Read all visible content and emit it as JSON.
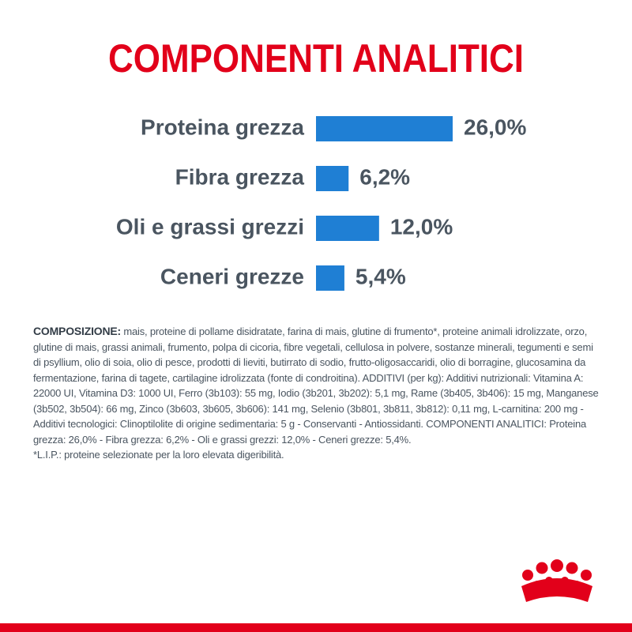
{
  "chart_data": {
    "type": "hbar",
    "title": "COMPONENTI ANALITICI",
    "categories": [
      "Proteina grezza",
      "Fibra grezza",
      "Oli e grassi grezzi",
      "Ceneri grezze"
    ],
    "values": [
      26.0,
      6.2,
      12.0,
      5.4
    ],
    "value_labels": [
      "26,0%",
      "6,2%",
      "12,0%",
      "5,4%"
    ],
    "color": "#1f7fd4"
  },
  "composition": {
    "label": "COMPOSIZIONE:",
    "text": "mais, proteine di pollame disidratate, farina di mais, glutine di frumento*, proteine animali idrolizzate, orzo, glutine di mais, grassi animali, frumento, polpa di cicoria, fibre vegetali, cellulosa in polvere, sostanze minerali, tegumenti e semi di psyllium, olio di soia, olio di pesce, prodotti di lieviti, butirrato di sodio, frutto-oligosaccaridi, olio di borragine, glucosamina da fermentazione, farina di tagete, cartilagine idrolizzata (fonte di condroitina). ADDITIVI (per kg): Additivi nutrizionali: Vitamina A: 22000 UI, Vitamina D3: 1000 UI, Ferro (3b103): 55 mg, Iodio (3b201, 3b202): 5,1 mg, Rame (3b405, 3b406): 15 mg, Manganese (3b502, 3b504): 66 mg, Zinco (3b603, 3b605, 3b606): 141 mg, Selenio (3b801, 3b811, 3b812): 0,11 mg, L-carnitina: 200 mg - Additivi tecnologici: Clinoptilolite di origine sedimentaria: 5 g - Conservanti - Antiossidanti. COMPONENTI ANALITICI: Proteina grezza: 26,0% - Fibra grezza: 6,2% - Oli e grassi grezzi: 12,0% - Ceneri grezze: 5,4%.",
    "footnote": "*L.I.P.: proteine selezionate per la loro elevata digeribilità."
  }
}
